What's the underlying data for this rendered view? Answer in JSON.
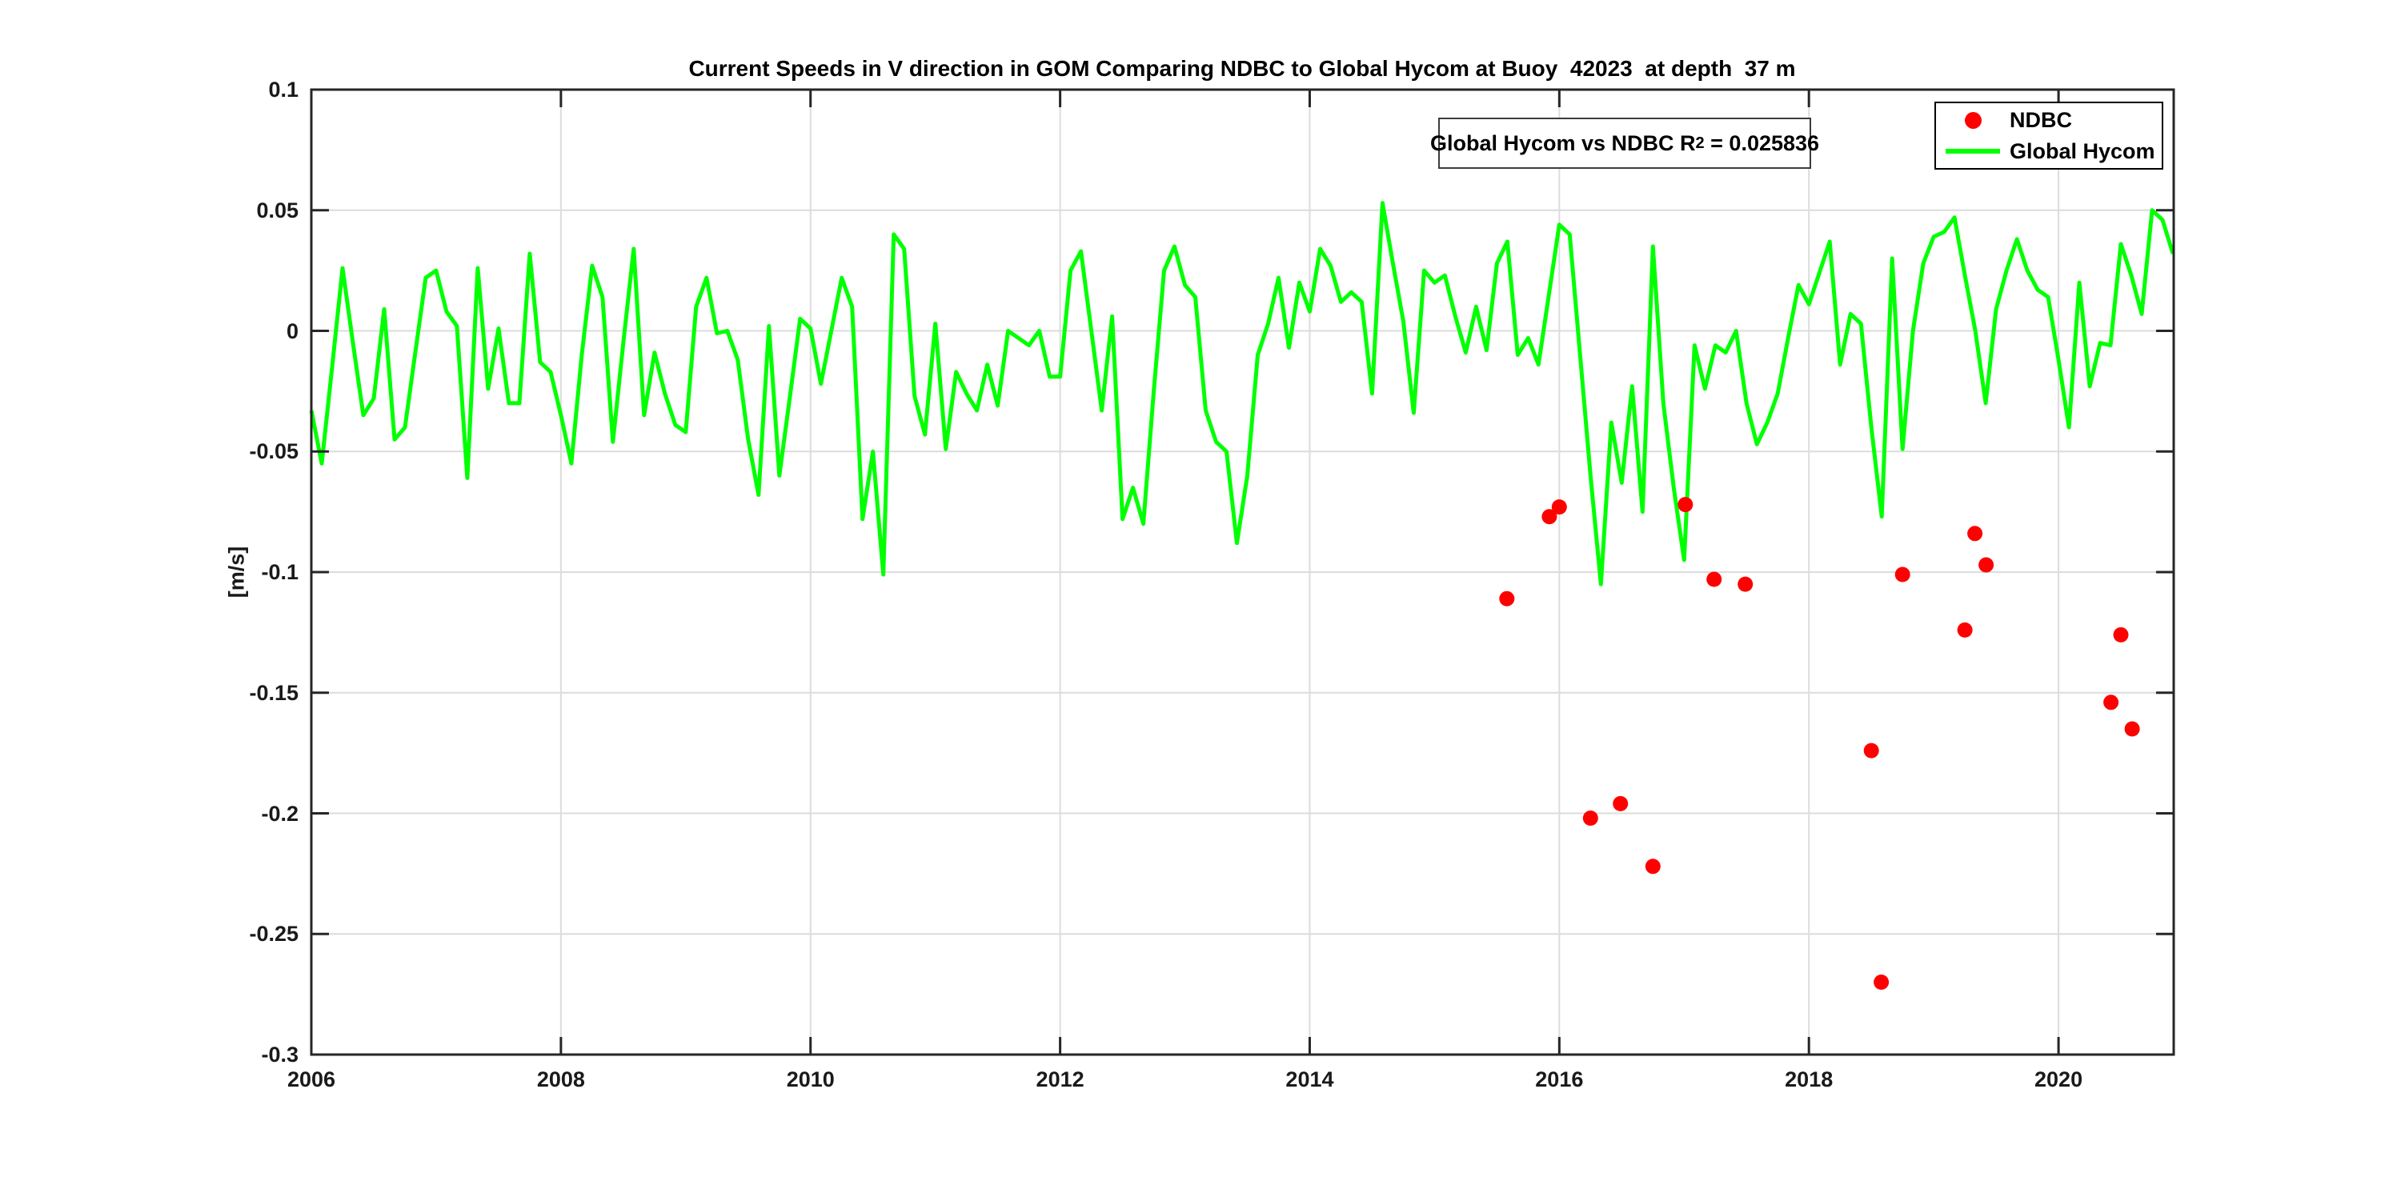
{
  "title": "Current Speeds in V direction in GOM Comparing NDBC to Global Hycom at Buoy  42023  at depth  37 m",
  "y_axis_label": "[m/s]",
  "annotation": {
    "prefix": "Global Hycom vs NDBC R",
    "exponent": "2",
    "suffix": " = 0.025836"
  },
  "legend": {
    "items": [
      {
        "label": "NDBC",
        "marker": "dot",
        "color": "#ff0000"
      },
      {
        "label": "Global Hycom",
        "marker": "line",
        "color": "#00ff00"
      }
    ]
  },
  "colors": {
    "hycom_green": "#00ff00",
    "ndbc_red": "#ff0000",
    "grid": "#dcdcdc",
    "axis": "#262626",
    "background": "#ffffff"
  },
  "chart_data": {
    "type": "line",
    "title": "Current Speeds in V direction in GOM Comparing NDBC to Global Hycom at Buoy  42023  at depth  37 m",
    "xlabel": "",
    "ylabel": "[m/s]",
    "xlim": [
      2006,
      2020.923
    ],
    "ylim": [
      -0.3,
      0.1
    ],
    "xticks": [
      2006,
      2008,
      2010,
      2012,
      2014,
      2016,
      2018,
      2020
    ],
    "xtick_labels": [
      "2006",
      "2008",
      "2010",
      "2012",
      "2014",
      "2016",
      "2018",
      "2020"
    ],
    "yticks": [
      0.1,
      0.05,
      0,
      -0.05,
      -0.1,
      -0.15,
      -0.2,
      -0.25,
      -0.3
    ],
    "ytick_labels": [
      "0.1",
      "0.05",
      "0",
      "-0.05",
      "-0.1",
      "-0.15",
      "-0.2",
      "-0.25",
      "-0.3"
    ],
    "grid": true,
    "legend_position": "top-right-inside",
    "series": [
      {
        "name": "Global Hycom",
        "type": "line",
        "color": "#00ff00",
        "line_width": 5,
        "start_year": 2006,
        "interval_months": 1,
        "values": [
          -0.033,
          -0.055,
          -0.015,
          0.026,
          -0.005,
          -0.035,
          -0.028,
          0.009,
          -0.045,
          -0.04,
          -0.009,
          0.022,
          0.025,
          0.008,
          0.002,
          -0.061,
          0.026,
          -0.024,
          0.001,
          -0.03,
          -0.03,
          0.032,
          -0.013,
          -0.017,
          -0.035,
          -0.055,
          -0.01,
          0.027,
          0.014,
          -0.046,
          -0.005,
          0.034,
          -0.035,
          -0.009,
          -0.026,
          -0.039,
          -0.042,
          0.01,
          0.022,
          -0.001,
          0.0,
          -0.012,
          -0.045,
          -0.068,
          0.002,
          -0.06,
          -0.028,
          0.005,
          0.001,
          -0.022,
          0.0,
          0.022,
          0.01,
          -0.078,
          -0.05,
          -0.101,
          0.04,
          0.034,
          -0.027,
          -0.043,
          0.003,
          -0.049,
          -0.017,
          -0.026,
          -0.033,
          -0.014,
          -0.031,
          0.0,
          -0.003,
          -0.006,
          0.0,
          -0.019,
          -0.019,
          0.025,
          0.033,
          0.0,
          -0.033,
          0.006,
          -0.078,
          -0.065,
          -0.08,
          -0.025,
          0.025,
          0.035,
          0.019,
          0.014,
          -0.033,
          -0.046,
          -0.05,
          -0.088,
          -0.06,
          -0.01,
          0.003,
          0.022,
          -0.007,
          0.02,
          0.008,
          0.034,
          0.027,
          0.012,
          0.016,
          0.012,
          -0.026,
          0.053,
          0.028,
          0.004,
          -0.034,
          0.025,
          0.02,
          0.023,
          0.006,
          -0.009,
          0.01,
          -0.008,
          0.028,
          0.037,
          -0.01,
          -0.003,
          -0.014,
          0.015,
          0.044,
          0.04,
          -0.01,
          -0.06,
          -0.105,
          -0.038,
          -0.063,
          -0.023,
          -0.075,
          0.035,
          -0.03,
          -0.065,
          -0.095,
          -0.006,
          -0.024,
          -0.006,
          -0.009,
          0.0,
          -0.03,
          -0.047,
          -0.038,
          -0.026,
          -0.003,
          0.019,
          0.011,
          0.024,
          0.037,
          -0.014,
          0.007,
          0.003,
          -0.04,
          -0.077,
          0.03,
          -0.049,
          0.0,
          0.028,
          0.039,
          0.041,
          0.047,
          0.023,
          0.0,
          -0.03,
          0.009,
          0.025,
          0.038,
          0.025,
          0.017,
          0.014,
          -0.012,
          -0.04,
          0.02,
          -0.023,
          -0.005,
          -0.006,
          0.036,
          0.023,
          0.007,
          0.05,
          0.046,
          0.032
        ]
      },
      {
        "name": "NDBC",
        "type": "scatter",
        "color": "#ff0000",
        "marker_radius": 9.5,
        "points": [
          [
            2015.58,
            -0.111
          ],
          [
            2015.92,
            -0.077
          ],
          [
            2016.0,
            -0.073
          ],
          [
            2016.25,
            -0.202
          ],
          [
            2016.49,
            -0.196
          ],
          [
            2016.75,
            -0.222
          ],
          [
            2017.01,
            -0.072
          ],
          [
            2017.24,
            -0.103
          ],
          [
            2017.49,
            -0.105
          ],
          [
            2018.5,
            -0.174
          ],
          [
            2018.58,
            -0.27
          ],
          [
            2018.75,
            -0.101
          ],
          [
            2019.25,
            -0.124
          ],
          [
            2019.33,
            -0.084
          ],
          [
            2019.42,
            -0.097
          ],
          [
            2020.42,
            -0.154
          ],
          [
            2020.5,
            -0.126
          ],
          [
            2020.59,
            -0.165
          ]
        ]
      }
    ]
  }
}
